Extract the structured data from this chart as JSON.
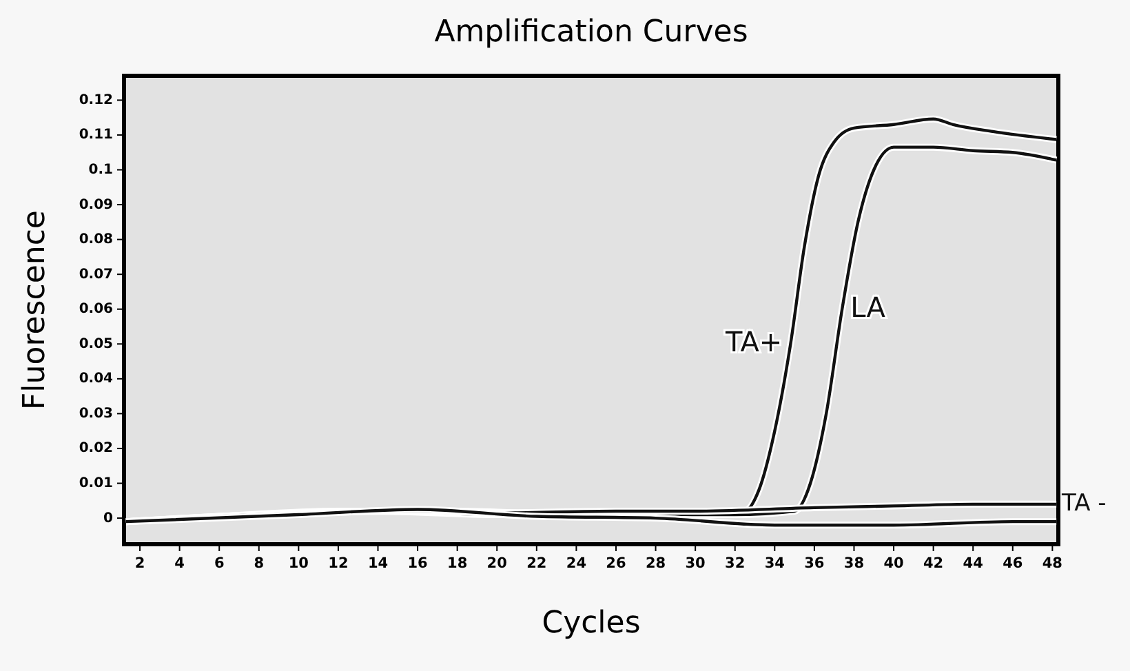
{
  "chart_data": {
    "type": "line",
    "title": "Amplification Curves",
    "xlabel": "Cycles",
    "ylabel": "Fluorescence",
    "xlim": [
      1.2,
      48.3
    ],
    "xticks": [
      2,
      4,
      6,
      8,
      10,
      12,
      14,
      16,
      18,
      20,
      22,
      24,
      26,
      28,
      30,
      32,
      34,
      36,
      38,
      40,
      42,
      44,
      46,
      48
    ],
    "ylim": [
      -0.0075,
      0.127
    ],
    "yticks": [
      0,
      0.01,
      0.02,
      0.03,
      0.04,
      0.05,
      0.06,
      0.07,
      0.08,
      0.09,
      0.1,
      0.11,
      0.12
    ],
    "grid": false,
    "legend": false,
    "marker": "none",
    "line_style": "solid",
    "series": [
      {
        "name": "TA+",
        "color": "#111111",
        "x": [
          1.3,
          6,
          12,
          18,
          24,
          30,
          32.5,
          33.2,
          34,
          34.8,
          35.5,
          36.2,
          37,
          38,
          40,
          42,
          43,
          45,
          48.2
        ],
        "values": [
          -0.001,
          0.0005,
          0.002,
          0.002,
          0.001,
          0.001,
          0.002,
          0.008,
          0.025,
          0.05,
          0.078,
          0.098,
          0.108,
          0.112,
          0.113,
          0.1146,
          0.113,
          0.111,
          0.1087
        ]
      },
      {
        "name": "LA",
        "color": "#111111",
        "x": [
          1.3,
          8,
          14,
          20,
          26,
          32,
          35,
          35.8,
          36.6,
          37.4,
          38.2,
          39,
          40,
          42,
          44,
          46,
          48.2
        ],
        "values": [
          -0.001,
          0.001,
          0.002,
          0.001,
          0.001,
          0.001,
          0.002,
          0.01,
          0.03,
          0.06,
          0.085,
          0.1,
          0.1065,
          0.1065,
          0.1055,
          0.105,
          0.1028
        ]
      },
      {
        "name": "TA -",
        "color": "#111111",
        "x": [
          1.3,
          8,
          16,
          20,
          26,
          30,
          36,
          40,
          44,
          48.2
        ],
        "values": [
          -0.001,
          0.001,
          0.002,
          0.0015,
          0.002,
          0.002,
          0.003,
          0.0035,
          0.004,
          0.004
        ]
      },
      {
        "color": "#111111",
        "x": [
          1.3,
          10,
          16,
          22,
          28,
          34,
          40,
          46,
          48.2
        ],
        "values": [
          -0.001,
          0.001,
          0.0025,
          0.0005,
          0,
          -0.002,
          -0.002,
          -0.001,
          -0.001
        ]
      }
    ]
  }
}
